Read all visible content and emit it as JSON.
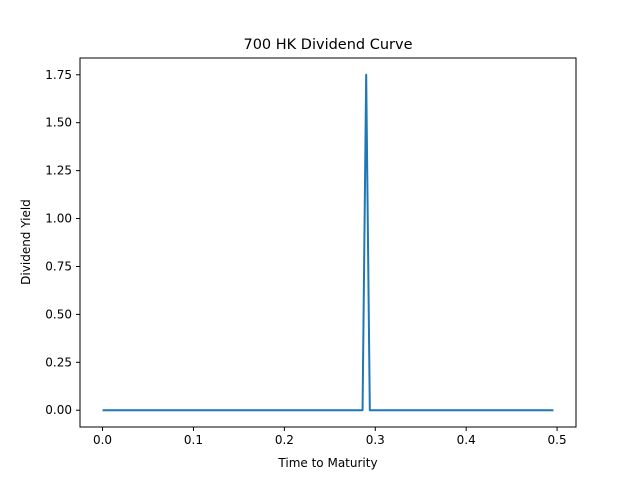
{
  "chart_data": {
    "type": "line",
    "title": "700 HK Dividend Curve",
    "xlabel": "Time to Maturity",
    "ylabel": "Dividend Yield",
    "xlim": [
      -0.0248,
      0.5208
    ],
    "ylim": [
      -0.0875,
      1.8375
    ],
    "xticks": [
      0.0,
      0.1,
      0.2,
      0.3,
      0.4,
      0.5
    ],
    "xtick_labels": [
      "0.0",
      "0.1",
      "0.2",
      "0.3",
      "0.4",
      "0.5"
    ],
    "yticks": [
      0.0,
      0.25,
      0.5,
      0.75,
      1.0,
      1.25,
      1.5,
      1.75
    ],
    "ytick_labels": [
      "0.00",
      "0.25",
      "0.50",
      "0.75",
      "1.00",
      "1.25",
      "1.50",
      "1.75"
    ],
    "grid": false,
    "series": [
      {
        "color": "#1f77b4",
        "x": [
          0.0,
          0.286,
          0.29,
          0.294,
          0.496
        ],
        "y": [
          0.0,
          0.0,
          1.75,
          0.0,
          0.0
        ]
      }
    ]
  }
}
